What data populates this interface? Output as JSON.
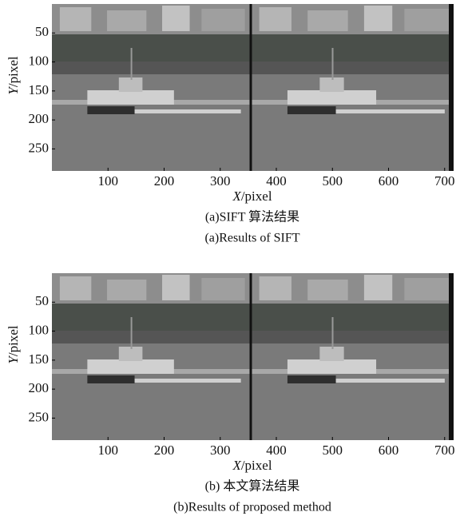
{
  "figures": [
    {
      "xlabel": {
        "var": "X",
        "unit": "/pixel"
      },
      "ylabel": {
        "var": "Y",
        "unit": "/pixel"
      },
      "xlim": [
        0,
        716
      ],
      "ylim": [
        0,
        288
      ],
      "y_inverted": true,
      "xticks": [
        100,
        200,
        300,
        400,
        500,
        600,
        700
      ],
      "yticks": [
        50,
        100,
        150,
        200,
        250
      ],
      "caption_cn": "(a)SIFT 算法结果",
      "caption_en": "(a)Results of SIFT"
    },
    {
      "xlabel": {
        "var": "X",
        "unit": "/pixel"
      },
      "ylabel": {
        "var": "Y",
        "unit": "/pixel"
      },
      "xlim": [
        0,
        716
      ],
      "ylim": [
        0,
        288
      ],
      "y_inverted": true,
      "xticks": [
        100,
        200,
        300,
        400,
        500,
        600,
        700
      ],
      "yticks": [
        50,
        100,
        150,
        200,
        250
      ],
      "caption_cn": "(b) 本文算法结果",
      "caption_en": "(b)Results of proposed method"
    }
  ]
}
